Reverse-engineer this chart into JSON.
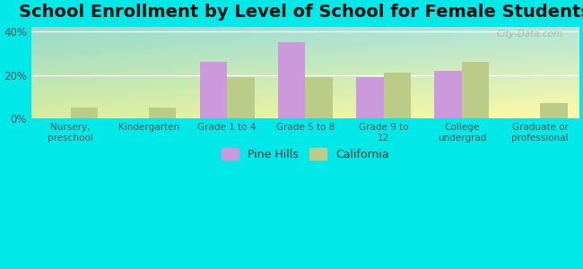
{
  "title": "School Enrollment by Level of School for Female Students",
  "categories": [
    "Nursery,\npreschool",
    "Kindergarten",
    "Grade 1 to 4",
    "Grade 5 to 8",
    "Grade 9 to\n12",
    "College\nundergrad",
    "Graduate or\nprofessional"
  ],
  "pine_hills": [
    0,
    0,
    26,
    35,
    19,
    22,
    0
  ],
  "california": [
    5,
    5,
    19,
    19,
    21,
    26,
    7
  ],
  "pine_hills_color": "#cc99dd",
  "california_color": "#bbcc88",
  "background_color": "#00e8e8",
  "ylim": [
    0,
    42
  ],
  "yticks": [
    0,
    20,
    40
  ],
  "ytick_labels": [
    "0%",
    "20%",
    "40%"
  ],
  "bar_width": 0.35,
  "title_fontsize": 14,
  "watermark": "City-Data.com"
}
